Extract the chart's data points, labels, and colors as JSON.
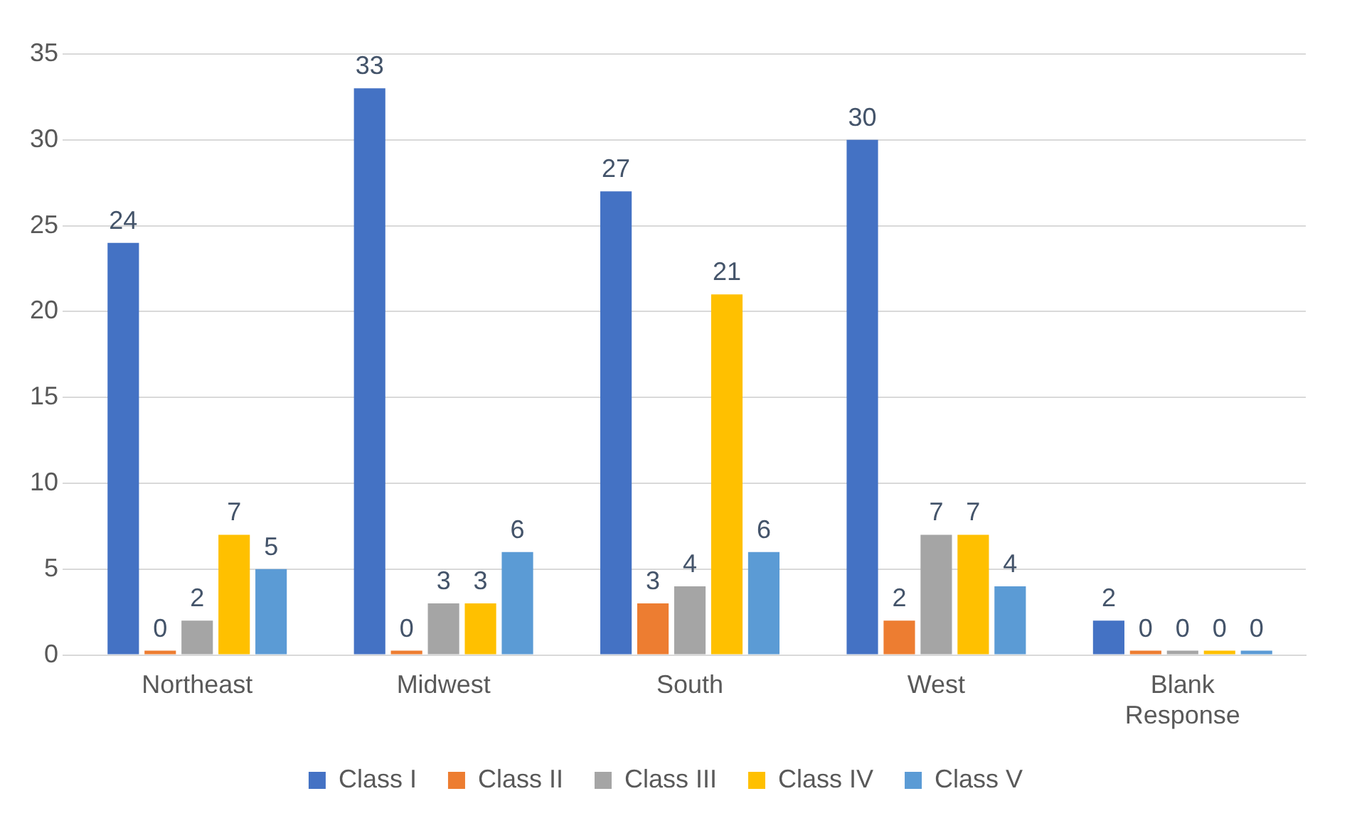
{
  "chart_data": {
    "type": "bar",
    "categories": [
      "Northeast",
      "Midwest",
      "South",
      "West",
      "Blank Response"
    ],
    "series": [
      {
        "name": "Class I",
        "color": "#4472c4",
        "values": [
          24,
          33,
          27,
          30,
          2
        ]
      },
      {
        "name": "Class II",
        "color": "#ed7d31",
        "values": [
          0,
          0,
          3,
          2,
          0
        ]
      },
      {
        "name": "Class III",
        "color": "#a5a5a5",
        "values": [
          2,
          3,
          4,
          7,
          0
        ]
      },
      {
        "name": "Class IV",
        "color": "#ffc000",
        "values": [
          7,
          3,
          21,
          7,
          0
        ]
      },
      {
        "name": "Class V",
        "color": "#5b9bd5",
        "values": [
          5,
          6,
          6,
          4,
          0
        ]
      }
    ],
    "ylim": [
      0,
      35
    ],
    "yticks": [
      0,
      5,
      10,
      15,
      20,
      25,
      30,
      35
    ],
    "grid": "y",
    "legend": "bottom",
    "data_labels": true
  }
}
